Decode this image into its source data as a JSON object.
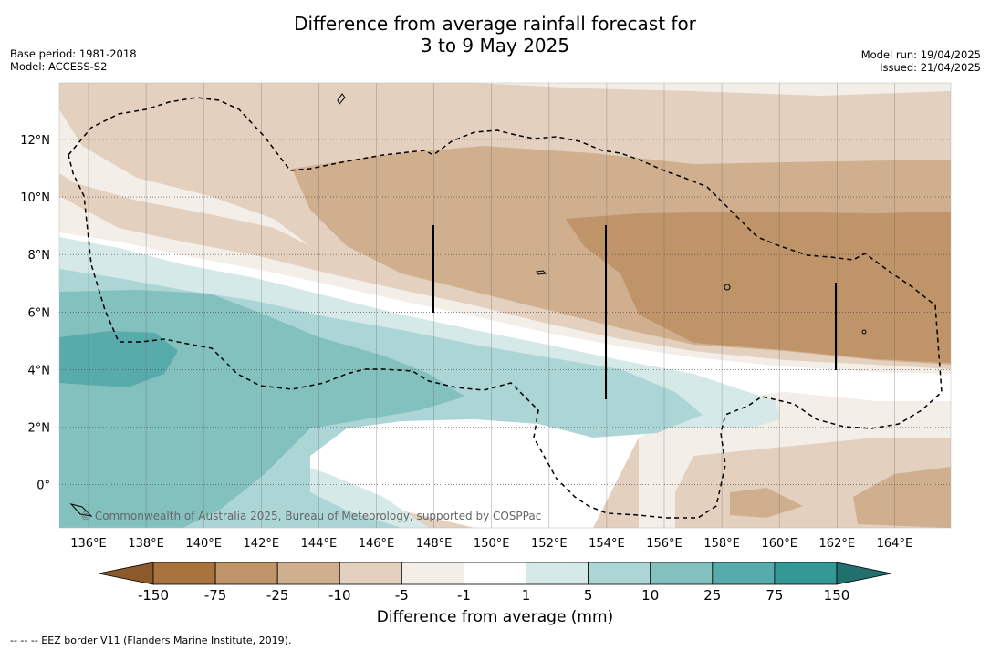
{
  "header": {
    "title_line1": "Difference from average rainfall forecast for",
    "title_line2": "3 to 9 May 2025",
    "base_period": "Base period: 1981-2018",
    "model": "Model: ACCESS-S2",
    "model_run": "Model run: 19/04/2025",
    "issued": "Issued: 21/04/2025"
  },
  "map": {
    "x_ticks": [
      "136°E",
      "138°E",
      "140°E",
      "142°E",
      "144°E",
      "146°E",
      "148°E",
      "150°E",
      "152°E",
      "154°E",
      "156°E",
      "158°E",
      "160°E",
      "162°E",
      "164°E"
    ],
    "y_ticks": [
      "12°N",
      "10°N",
      "8°N",
      "6°N",
      "4°N",
      "2°N",
      "0°"
    ],
    "copyright": "© Commonwealth of Australia 2025, Bureau of Meteorology, supported by COSPPac"
  },
  "colorbar": {
    "ticks": [
      "-150",
      "-75",
      "-25",
      "-10",
      "-5",
      "-1",
      "1",
      "5",
      "10",
      "25",
      "75",
      "150"
    ],
    "colors": [
      "#a8733c",
      "#bf9468",
      "#d0af8f",
      "#e3d0be",
      "#f3eee8",
      "#ffffff",
      "#d5e9e8",
      "#acd6d5",
      "#83c1bf",
      "#57abaa",
      "#349895"
    ],
    "extend_low_color": "#8d5a2b",
    "extend_high_color": "#21706d",
    "label": "Difference from average (mm)"
  },
  "footnote": "-- -- -- EEZ border V11 (Flanders Marine Institute, 2019)."
}
